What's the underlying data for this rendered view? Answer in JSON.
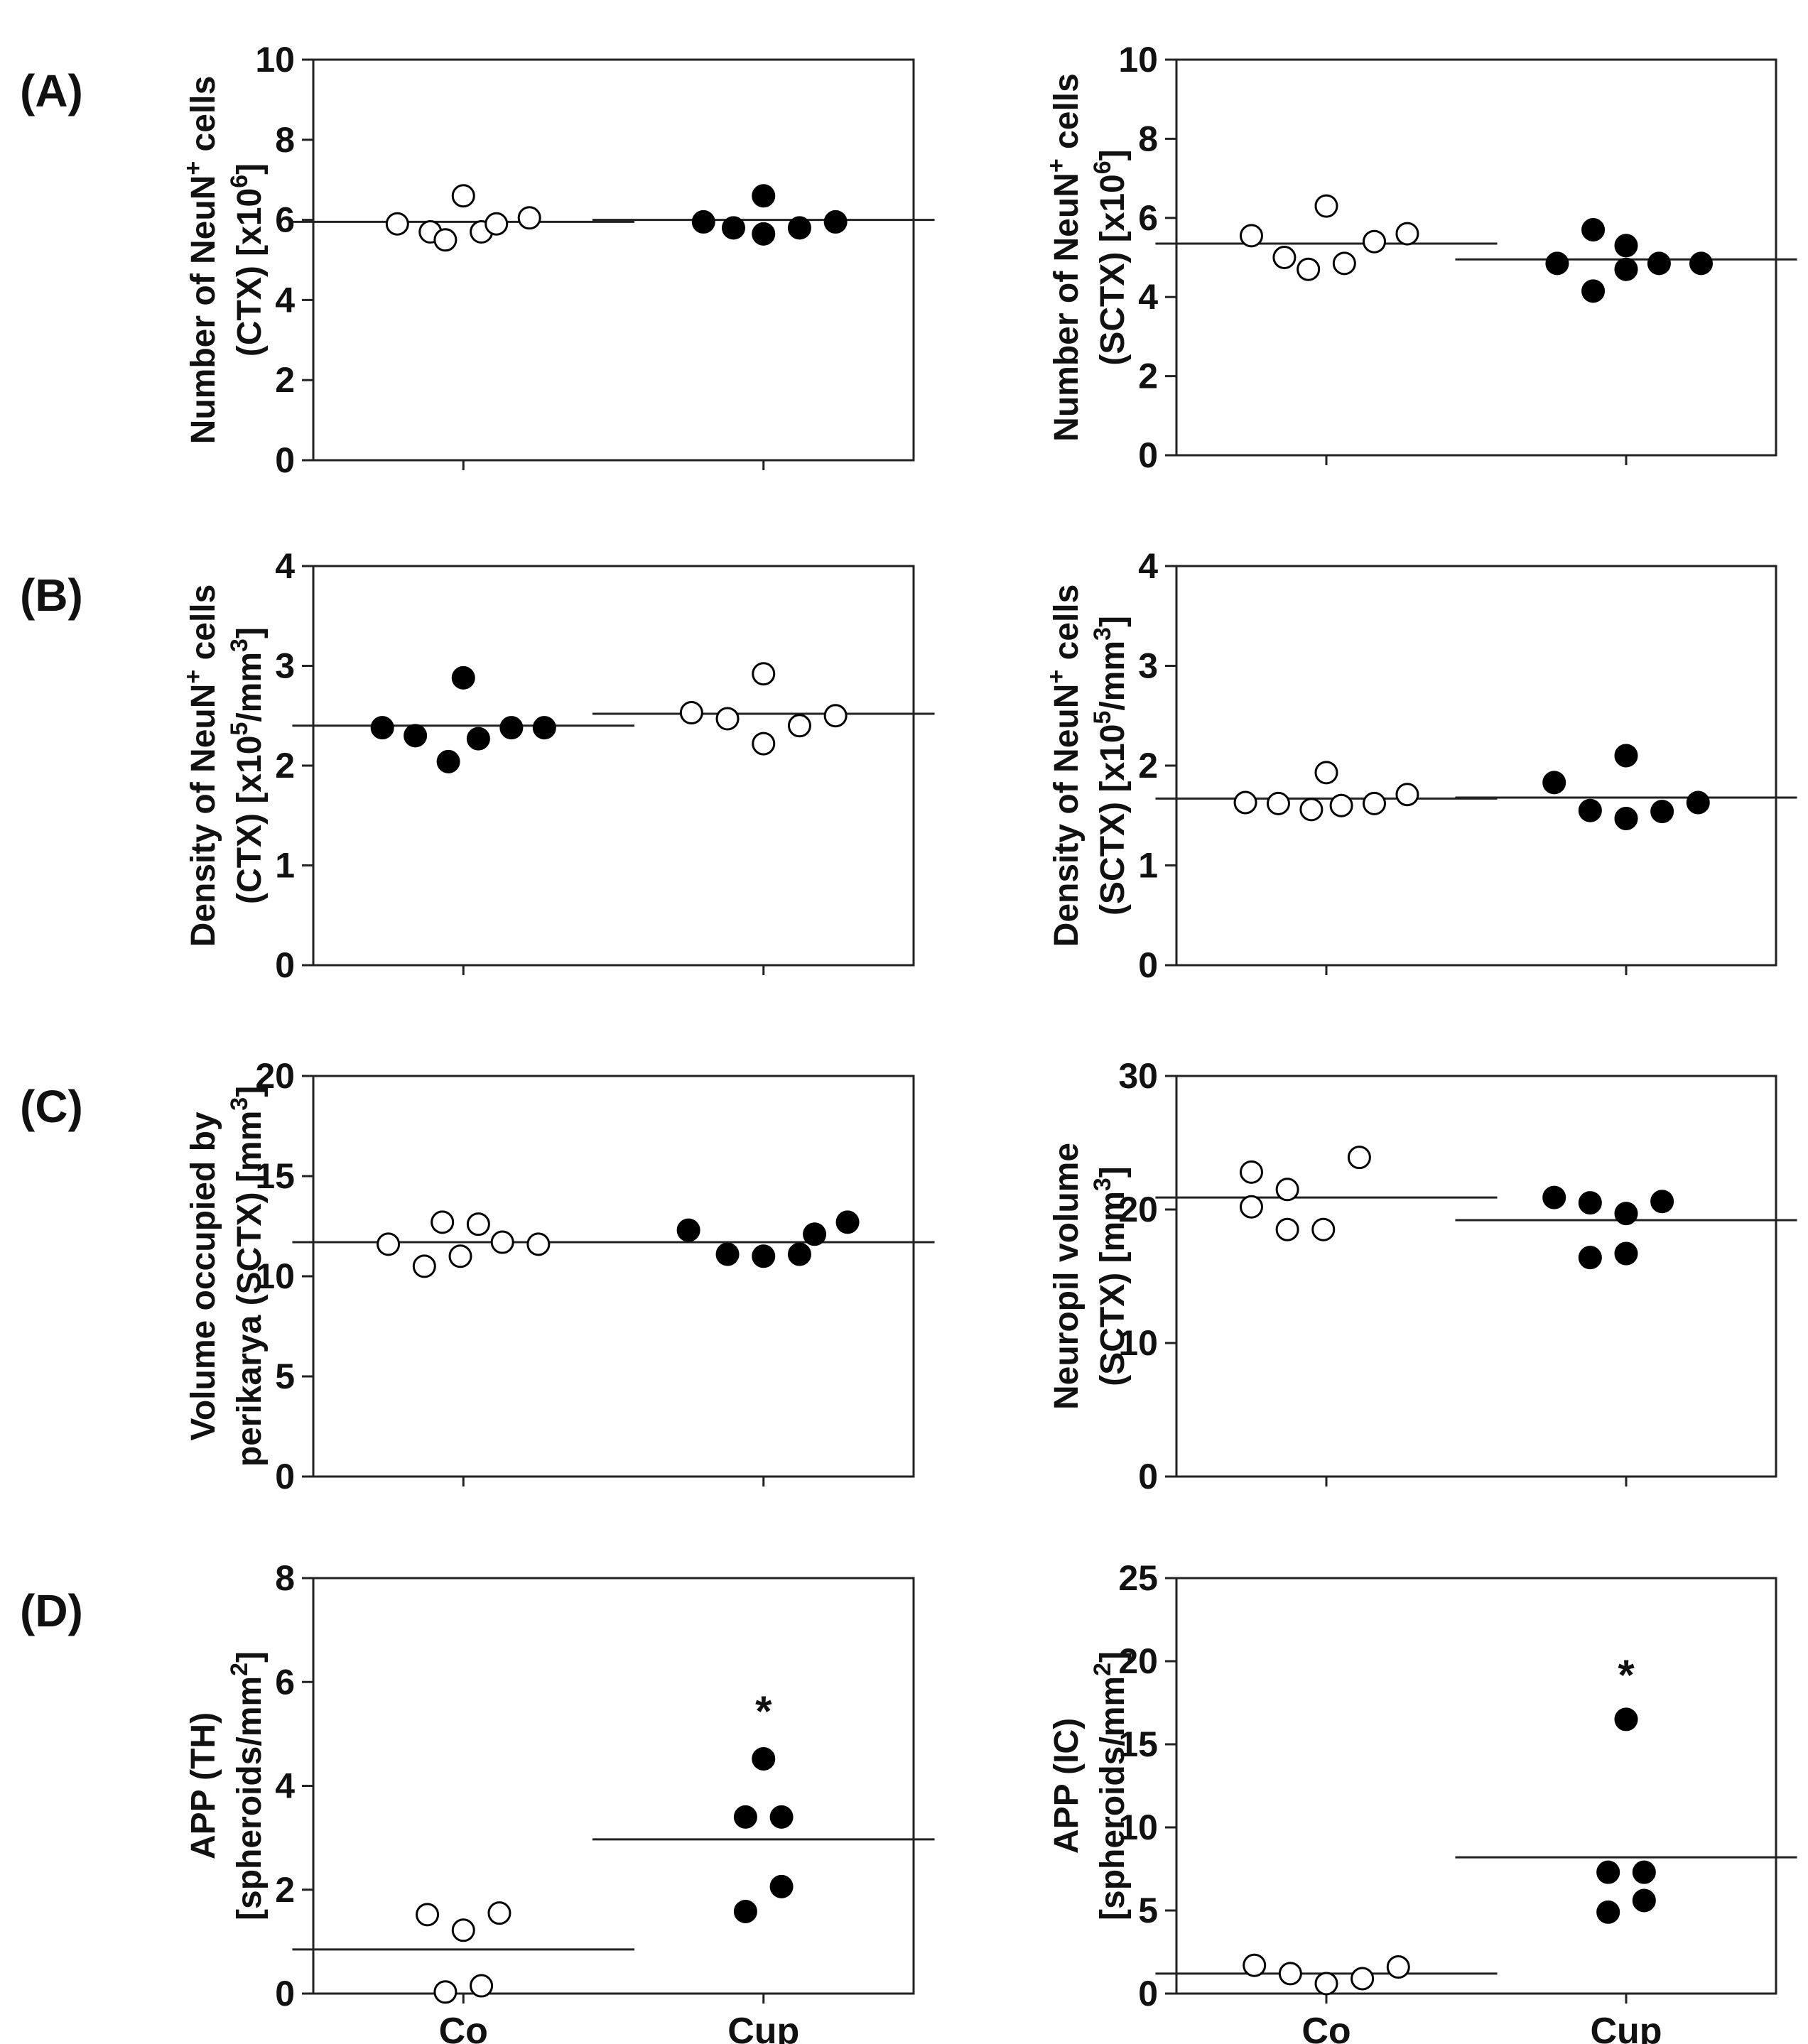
{
  "chart_data": [
    {
      "panel_label": "(A)",
      "type": "scatter",
      "title": "",
      "ylabel_lines": [
        [
          "Number of NeuN",
          "+",
          " cells"
        ],
        [
          "(CTX)  [x10",
          "6",
          "]"
        ]
      ],
      "ylim": [
        0,
        10
      ],
      "yticks": [
        "0",
        "2",
        "4",
        "6",
        "8",
        "10"
      ],
      "categories": [
        "Co",
        "Cup"
      ],
      "show_xlabels": false,
      "series": [
        {
          "name": "Co",
          "fill": "open",
          "x": [
            0.78,
            0.89,
            0.94,
            1.0,
            1.06,
            1.11,
            1.22
          ],
          "values": [
            5.9,
            5.7,
            5.5,
            6.6,
            5.7,
            5.9,
            6.05
          ],
          "mean": 5.95
        },
        {
          "name": "Cup",
          "fill": "filled",
          "x": [
            1.8,
            1.9,
            2.0,
            2.0,
            2.12,
            2.24
          ],
          "values": [
            5.95,
            5.8,
            5.65,
            6.6,
            5.8,
            5.95
          ],
          "mean": 6.0
        }
      ],
      "annotations": []
    },
    {
      "panel_label": "",
      "type": "scatter",
      "title": "",
      "ylabel_lines": [
        [
          "Number of NeuN",
          "+",
          " cells"
        ],
        [
          "(SCTX)  [x10",
          "6",
          "]"
        ]
      ],
      "ylim": [
        0,
        10
      ],
      "yticks": [
        "0",
        "2",
        "4",
        "6",
        "8",
        "10"
      ],
      "categories": [
        "Co",
        "Cup"
      ],
      "show_xlabels": false,
      "series": [
        {
          "name": "Co",
          "fill": "open",
          "x": [
            0.75,
            0.86,
            0.94,
            1.0,
            1.06,
            1.16,
            1.27
          ],
          "values": [
            5.55,
            5.0,
            4.7,
            6.3,
            4.85,
            5.4,
            5.6
          ],
          "mean": 5.35
        },
        {
          "name": "Cup",
          "fill": "filled",
          "x": [
            1.77,
            1.89,
            1.89,
            2.0,
            2.0,
            2.11,
            2.25
          ],
          "values": [
            4.85,
            5.7,
            4.15,
            5.3,
            4.7,
            4.85,
            4.85
          ],
          "mean": 4.95
        }
      ],
      "annotations": []
    },
    {
      "panel_label": "(B)",
      "type": "scatter",
      "title": "",
      "ylabel_lines": [
        [
          "Density of NeuN",
          "+",
          " cells"
        ],
        [
          "(CTX)  [x10",
          "5",
          "/mm",
          "3",
          "]"
        ]
      ],
      "ylim": [
        0,
        4
      ],
      "yticks": [
        "0",
        "1",
        "2",
        "3",
        "4"
      ],
      "categories": [
        "Co",
        "Cup"
      ],
      "show_xlabels": false,
      "series": [
        {
          "name": "Co",
          "fill": "filled",
          "x": [
            0.73,
            0.84,
            0.95,
            1.0,
            1.05,
            1.16,
            1.27
          ],
          "values": [
            2.38,
            2.3,
            2.04,
            2.88,
            2.27,
            2.38,
            2.38
          ],
          "mean": 2.4
        },
        {
          "name": "Cup",
          "fill": "open",
          "x": [
            1.76,
            1.88,
            2.0,
            2.0,
            2.12,
            2.24
          ],
          "values": [
            2.53,
            2.47,
            2.22,
            2.92,
            2.4,
            2.5
          ],
          "mean": 2.52
        }
      ],
      "annotations": []
    },
    {
      "panel_label": "",
      "type": "scatter",
      "title": "",
      "ylabel_lines": [
        [
          "Density of NeuN",
          "+",
          " cells"
        ],
        [
          "(SCTX)  [x10",
          "5",
          "/mm",
          "3",
          "]"
        ]
      ],
      "ylim": [
        0,
        4
      ],
      "yticks": [
        "0",
        "1",
        "2",
        "3",
        "4"
      ],
      "categories": [
        "Co",
        "Cup"
      ],
      "show_xlabels": false,
      "series": [
        {
          "name": "Co",
          "fill": "open",
          "x": [
            0.73,
            0.84,
            0.95,
            1.0,
            1.05,
            1.16,
            1.27
          ],
          "values": [
            1.63,
            1.62,
            1.56,
            1.93,
            1.6,
            1.62,
            1.71
          ],
          "mean": 1.67
        },
        {
          "name": "Cup",
          "fill": "filled",
          "x": [
            1.76,
            1.88,
            2.0,
            2.0,
            2.12,
            2.24
          ],
          "values": [
            1.83,
            1.55,
            1.47,
            2.1,
            1.54,
            1.63
          ],
          "mean": 1.68
        }
      ],
      "annotations": []
    },
    {
      "panel_label": "(C)",
      "type": "scatter",
      "title": "",
      "ylabel_lines": [
        [
          "Volume occupied by"
        ],
        [
          "perikarya (SCTX) [mm",
          "3",
          "]"
        ]
      ],
      "ylim": [
        0,
        20
      ],
      "yticks": [
        "0",
        "5",
        "10",
        "15",
        "20"
      ],
      "categories": [
        "Co",
        "Cup"
      ],
      "show_xlabels": false,
      "series": [
        {
          "name": "Co",
          "fill": "open",
          "x": [
            0.75,
            0.87,
            0.93,
            0.99,
            1.05,
            1.13,
            1.25
          ],
          "values": [
            11.6,
            10.5,
            12.7,
            11.0,
            12.6,
            11.7,
            11.6
          ],
          "mean": 11.7
        },
        {
          "name": "Cup",
          "fill": "filled",
          "x": [
            1.75,
            1.88,
            2.0,
            2.12,
            2.17,
            2.28
          ],
          "values": [
            12.3,
            11.1,
            11.0,
            11.1,
            12.1,
            12.7
          ],
          "mean": 11.7
        }
      ],
      "annotations": []
    },
    {
      "panel_label": "",
      "type": "scatter",
      "title": "",
      "ylabel_lines": [
        [
          "Neuropil volume"
        ],
        [
          "(SCTX) [mm",
          "3",
          "]"
        ]
      ],
      "ylim": [
        0,
        30
      ],
      "yticks": [
        "0",
        "10",
        "20",
        "30"
      ],
      "categories": [
        "Co",
        "Cup"
      ],
      "show_xlabels": false,
      "series": [
        {
          "name": "Co",
          "fill": "open",
          "x": [
            0.75,
            0.75,
            0.87,
            0.87,
            0.99,
            1.11
          ],
          "values": [
            22.8,
            20.2,
            21.5,
            18.5,
            18.5,
            23.9
          ],
          "mean": 20.9
        },
        {
          "name": "Cup",
          "fill": "filled",
          "x": [
            1.76,
            1.88,
            1.88,
            2.0,
            2.0,
            2.12
          ],
          "values": [
            20.9,
            20.5,
            16.4,
            19.7,
            16.7,
            20.6
          ],
          "mean": 19.2
        }
      ],
      "annotations": []
    },
    {
      "panel_label": "(D)",
      "type": "scatter",
      "title": "",
      "ylabel_lines": [
        [
          "APP (TH)"
        ],
        [
          "[spheroids/mm",
          "2",
          "]"
        ]
      ],
      "ylim": [
        0,
        8
      ],
      "yticks": [
        "0",
        "2",
        "4",
        "6",
        "8"
      ],
      "categories": [
        "Co",
        "Cup"
      ],
      "show_xlabels": true,
      "series": [
        {
          "name": "Co",
          "fill": "open",
          "x": [
            0.88,
            0.94,
            1.0,
            1.06,
            1.12
          ],
          "values": [
            1.52,
            0.03,
            1.22,
            0.15,
            1.55
          ],
          "mean": 0.85
        },
        {
          "name": "Cup",
          "fill": "filled",
          "x": [
            1.94,
            1.94,
            2.0,
            2.06,
            2.06
          ],
          "values": [
            1.58,
            3.4,
            4.52,
            3.4,
            2.06
          ],
          "mean": 2.97
        }
      ],
      "annotations": [
        {
          "text": "*",
          "x": 2.0,
          "y": 5.7
        }
      ]
    },
    {
      "panel_label": "",
      "type": "scatter",
      "title": "",
      "ylabel_lines": [
        [
          "APP (IC)"
        ],
        [
          "[spheroids/mm",
          "2",
          "]"
        ]
      ],
      "ylim": [
        0,
        25
      ],
      "yticks": [
        "0",
        "5",
        "10",
        "15",
        "20",
        "25"
      ],
      "categories": [
        "Co",
        "Cup"
      ],
      "show_xlabels": true,
      "series": [
        {
          "name": "Co",
          "fill": "open",
          "x": [
            0.76,
            0.88,
            1.0,
            1.12,
            1.24
          ],
          "values": [
            1.7,
            1.2,
            0.6,
            0.9,
            1.6
          ],
          "mean": 1.2
        },
        {
          "name": "Cup",
          "fill": "filled",
          "x": [
            1.94,
            1.94,
            2.0,
            2.06,
            2.06
          ],
          "values": [
            4.9,
            7.3,
            16.5,
            7.3,
            5.6
          ],
          "mean": 8.2
        }
      ],
      "annotations": [
        {
          "text": "*",
          "x": 2.0,
          "y": 20.0
        }
      ]
    }
  ]
}
